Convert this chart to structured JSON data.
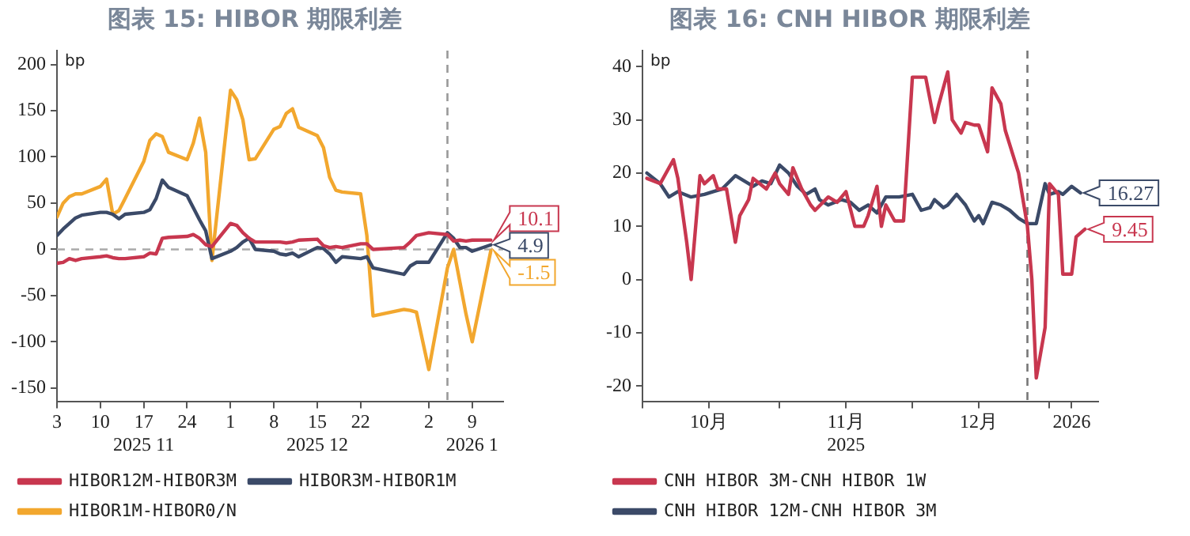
{
  "chart_data": [
    {
      "type": "line",
      "title": "图表 15: HIBOR 期限利差",
      "ylabel": "bp",
      "legend": "bottom",
      "grid": false,
      "marker": "none",
      "line_style": "solid",
      "x": [
        "2025-11-03",
        "2025-11-04",
        "2025-11-05",
        "2025-11-06",
        "2025-11-07",
        "2025-11-10",
        "2025-11-11",
        "2025-11-12",
        "2025-11-13",
        "2025-11-14",
        "2025-11-17",
        "2025-11-18",
        "2025-11-19",
        "2025-11-20",
        "2025-11-21",
        "2025-11-24",
        "2025-11-25",
        "2025-11-26",
        "2025-11-27",
        "2025-11-28",
        "2025-12-01",
        "2025-12-02",
        "2025-12-03",
        "2025-12-04",
        "2025-12-05",
        "2025-12-08",
        "2025-12-09",
        "2025-12-10",
        "2025-12-11",
        "2025-12-12",
        "2025-12-15",
        "2025-12-16",
        "2025-12-17",
        "2025-12-18",
        "2025-12-19",
        "2025-12-22",
        "2025-12-23",
        "2025-12-24",
        "2025-12-29",
        "2025-12-30",
        "2025-12-31",
        "2026-01-02",
        "2026-01-05",
        "2026-01-06",
        "2026-01-07",
        "2026-01-08",
        "2026-01-09",
        "2026-01-12"
      ],
      "xlim": [
        "2025-11-03",
        "2026-01-14"
      ],
      "xticks": [
        {
          "value": "2025-11-03",
          "label": "3"
        },
        {
          "value": "2025-11-10",
          "label": "10"
        },
        {
          "value": "2025-11-17",
          "label": "17\n2025 11"
        },
        {
          "value": "2025-11-24",
          "label": "24"
        },
        {
          "value": "2025-12-01",
          "label": "1"
        },
        {
          "value": "2025-12-08",
          "label": "8"
        },
        {
          "value": "2025-12-15",
          "label": "15\n2025 12"
        },
        {
          "value": "2025-12-22",
          "label": "22"
        },
        {
          "value": "2026-01-02",
          "label": "2"
        },
        {
          "value": "2026-01-09",
          "label": "9\n2026 1"
        }
      ],
      "ylim": [
        -165,
        215
      ],
      "yticks": [
        -150,
        -100,
        -50,
        0,
        50,
        100,
        150,
        200
      ],
      "ref_lines": [
        {
          "axis": "y",
          "value": 0,
          "color": "#aaaaaa",
          "line_style": "dashed"
        },
        {
          "axis": "x",
          "value": "2026-01-05",
          "color": "#999999",
          "line_style": "dashed"
        }
      ],
      "series": [
        {
          "name": "HIBOR12M-HIBOR3M",
          "color": "#c8374f",
          "values": [
            -15,
            -14,
            -10,
            -12,
            -10,
            -8,
            -7,
            -9,
            -10,
            -10,
            -8,
            -4,
            -5,
            12,
            13,
            14,
            16,
            12,
            5,
            3,
            28,
            26,
            18,
            12,
            8,
            8,
            8,
            7,
            8,
            10,
            11,
            4,
            2,
            3,
            2,
            6,
            6,
            0,
            2,
            8,
            15,
            18,
            16,
            9,
            10,
            9,
            10,
            10.1
          ],
          "value_labels": [
            null,
            null,
            null,
            null,
            null,
            null,
            null,
            null,
            null,
            null,
            null,
            null,
            null,
            null,
            null,
            null,
            null,
            null,
            null,
            null,
            null,
            null,
            null,
            null,
            null,
            null,
            null,
            null,
            null,
            null,
            null,
            null,
            null,
            null,
            null,
            null,
            null,
            null,
            null,
            null,
            null,
            null,
            null,
            null,
            null,
            null,
            null,
            "10.1"
          ]
        },
        {
          "name": "HIBOR3M-HIBOR1M",
          "color": "#3b4a68",
          "values": [
            15,
            22,
            28,
            34,
            37,
            40,
            40,
            38,
            33,
            38,
            40,
            43,
            55,
            75,
            67,
            58,
            45,
            32,
            20,
            -10,
            -2,
            2,
            8,
            12,
            0,
            -2,
            -5,
            -6,
            -4,
            -8,
            2,
            1,
            -5,
            -14,
            -8,
            -10,
            -8,
            -20,
            -27,
            -18,
            -14,
            -14,
            18,
            12,
            2,
            2,
            -2,
            4.9
          ],
          "value_labels": [
            null,
            null,
            null,
            null,
            null,
            null,
            null,
            null,
            null,
            null,
            null,
            null,
            null,
            null,
            null,
            null,
            null,
            null,
            null,
            null,
            null,
            null,
            null,
            null,
            null,
            null,
            null,
            null,
            null,
            null,
            null,
            null,
            null,
            null,
            null,
            null,
            null,
            null,
            null,
            null,
            null,
            null,
            null,
            null,
            null,
            null,
            null,
            "4.9"
          ]
        },
        {
          "name": "HIBOR1M-HIBOR0/N",
          "color": "#f2a72e",
          "values": [
            35,
            50,
            57,
            60,
            60,
            68,
            76,
            38,
            42,
            55,
            95,
            118,
            125,
            122,
            105,
            97,
            115,
            142,
            105,
            -12,
            172,
            162,
            140,
            97,
            98,
            130,
            133,
            147,
            152,
            132,
            123,
            110,
            78,
            64,
            62,
            60,
            15,
            -72,
            -65,
            -66,
            -68,
            -130,
            -20,
            0,
            -35,
            -70,
            -100,
            -1.5
          ],
          "value_labels": [
            null,
            null,
            null,
            null,
            null,
            null,
            null,
            null,
            null,
            null,
            null,
            null,
            null,
            null,
            null,
            null,
            null,
            null,
            null,
            null,
            null,
            null,
            null,
            null,
            null,
            null,
            null,
            null,
            null,
            null,
            null,
            null,
            null,
            null,
            null,
            null,
            null,
            null,
            null,
            null,
            null,
            null,
            null,
            null,
            null,
            null,
            null,
            "-1.5"
          ]
        }
      ]
    },
    {
      "type": "line",
      "title": "图表 16: CNH HIBOR 期限利差",
      "ylabel": "bp",
      "legend": "bottom",
      "grid": false,
      "marker": "none",
      "line_style": "solid",
      "xlim": [
        "2025-10-01",
        "2026-01-12"
      ],
      "xticks": [
        {
          "value": "2025-10-01",
          "label": null
        },
        {
          "value": "2025-10-16",
          "label": "10月"
        },
        {
          "value": "2025-11-01",
          "label": null
        },
        {
          "value": "2025-11-16",
          "label": "11月\n2025"
        },
        {
          "value": "2025-12-01",
          "label": null
        },
        {
          "value": "2025-12-16",
          "label": "12月"
        },
        {
          "value": "2026-01-01",
          "label": null
        },
        {
          "value": "2026-01-06",
          "label": "2026"
        }
      ],
      "ylim": [
        -23,
        43
      ],
      "yticks": [
        -20,
        -10,
        0,
        10,
        20,
        30,
        40
      ],
      "ref_lines": [
        {
          "axis": "x",
          "value": "2025-12-27",
          "color": "#777777",
          "line_style": "dashed"
        }
      ],
      "series": [
        {
          "name": "CNH HIBOR 3M-CNH HIBOR 1W",
          "color": "#c8374f",
          "x": [
            "2025-10-02",
            "2025-10-05",
            "2025-10-08",
            "2025-10-09",
            "2025-10-11",
            "2025-10-12",
            "2025-10-14",
            "2025-10-15",
            "2025-10-17",
            "2025-10-18",
            "2025-10-20",
            "2025-10-22",
            "2025-10-23",
            "2025-10-25",
            "2025-10-26",
            "2025-10-29",
            "2025-10-31",
            "2025-11-01",
            "2025-11-03",
            "2025-11-04",
            "2025-11-06",
            "2025-11-08",
            "2025-11-09",
            "2025-11-12",
            "2025-11-14",
            "2025-11-16",
            "2025-11-18",
            "2025-11-20",
            "2025-11-21",
            "2025-11-23",
            "2025-11-24",
            "2025-11-25",
            "2025-11-27",
            "2025-11-29",
            "2025-12-01",
            "2025-12-04",
            "2025-12-06",
            "2025-12-07",
            "2025-12-09",
            "2025-12-10",
            "2025-12-12",
            "2025-12-13",
            "2025-12-15",
            "2025-12-16",
            "2025-12-18",
            "2025-12-19",
            "2025-12-21",
            "2025-12-22",
            "2025-12-25",
            "2025-12-27",
            "2025-12-28",
            "2025-12-29",
            "2025-12-31",
            "2026-01-01",
            "2026-01-03",
            "2026-01-04",
            "2026-01-06",
            "2026-01-07",
            "2026-01-09"
          ],
          "values": [
            19,
            18,
            22.5,
            19,
            7,
            0,
            19.5,
            18,
            19.5,
            17,
            17,
            7,
            12,
            15,
            19,
            17,
            20,
            18,
            16,
            21,
            17,
            14,
            13,
            15.5,
            14.5,
            16.5,
            10,
            10,
            12,
            17.5,
            10,
            14,
            11,
            11,
            38,
            38,
            29.5,
            33,
            39,
            30,
            27.5,
            29.5,
            29,
            29,
            24,
            36,
            33,
            28,
            20,
            10,
            0,
            -18.5,
            -9,
            18,
            16,
            1,
            1,
            8,
            9.45
          ],
          "value_labels": [
            null,
            null,
            null,
            null,
            null,
            null,
            null,
            null,
            null,
            null,
            null,
            null,
            null,
            null,
            null,
            null,
            null,
            null,
            null,
            null,
            null,
            null,
            null,
            null,
            null,
            null,
            null,
            null,
            null,
            null,
            null,
            null,
            null,
            null,
            null,
            null,
            null,
            null,
            null,
            null,
            null,
            null,
            null,
            null,
            null,
            null,
            null,
            null,
            null,
            null,
            null,
            null,
            null,
            null,
            null,
            null,
            null,
            null,
            "9.45"
          ]
        },
        {
          "name": "CNH HIBOR 12M-CNH HIBOR 3M",
          "color": "#3b4a68",
          "x": [
            "2025-10-02",
            "2025-10-05",
            "2025-10-07",
            "2025-10-09",
            "2025-10-12",
            "2025-10-15",
            "2025-10-17",
            "2025-10-19",
            "2025-10-22",
            "2025-10-24",
            "2025-10-26",
            "2025-10-28",
            "2025-10-30",
            "2025-11-01",
            "2025-11-03",
            "2025-11-05",
            "2025-11-07",
            "2025-11-09",
            "2025-11-10",
            "2025-11-12",
            "2025-11-15",
            "2025-11-17",
            "2025-11-19",
            "2025-11-21",
            "2025-11-23",
            "2025-11-25",
            "2025-11-28",
            "2025-12-01",
            "2025-12-03",
            "2025-12-05",
            "2025-12-06",
            "2025-12-08",
            "2025-12-09",
            "2025-12-11",
            "2025-12-13",
            "2025-12-15",
            "2025-12-16",
            "2025-12-17",
            "2025-12-19",
            "2025-12-21",
            "2025-12-23",
            "2025-12-25",
            "2025-12-27",
            "2025-12-29",
            "2025-12-31",
            "2026-01-01",
            "2026-01-03",
            "2026-01-04",
            "2026-01-06",
            "2026-01-08"
          ],
          "values": [
            20,
            18,
            15.5,
            16.5,
            15.5,
            16,
            16.5,
            17,
            19.5,
            18.5,
            17.5,
            18.5,
            18,
            21.5,
            20,
            17.5,
            16,
            17,
            15,
            14,
            15,
            14.5,
            13,
            14,
            12.5,
            15.5,
            15.5,
            16,
            13,
            13.5,
            15,
            13.5,
            14,
            16,
            14,
            11,
            12,
            10.5,
            14.5,
            14,
            13,
            11.5,
            10.5,
            10.5,
            18,
            16,
            16.5,
            16,
            17.5,
            16.27
          ],
          "value_labels": [
            null,
            null,
            null,
            null,
            null,
            null,
            null,
            null,
            null,
            null,
            null,
            null,
            null,
            null,
            null,
            null,
            null,
            null,
            null,
            null,
            null,
            null,
            null,
            null,
            null,
            null,
            null,
            null,
            null,
            null,
            null,
            null,
            null,
            null,
            null,
            null,
            null,
            null,
            null,
            null,
            null,
            null,
            null,
            null,
            null,
            null,
            null,
            null,
            null,
            "16.27"
          ]
        }
      ]
    }
  ]
}
